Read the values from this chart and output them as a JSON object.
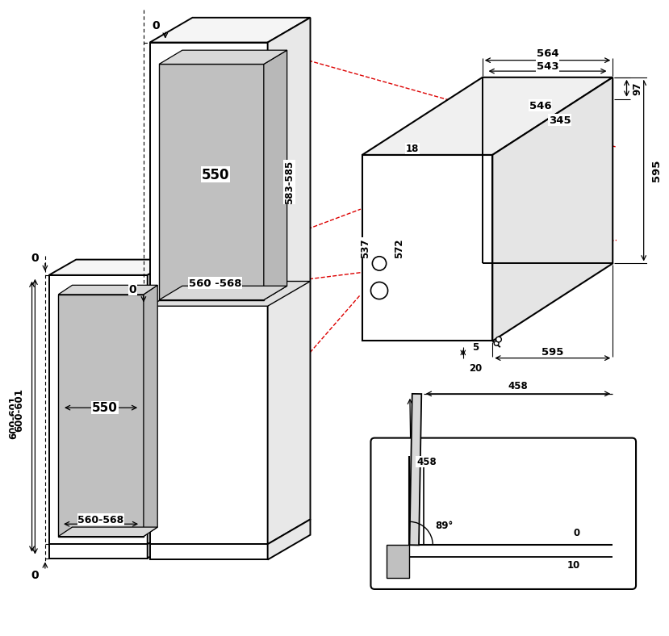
{
  "bg_color": "#ffffff",
  "lc": "#000000",
  "rc": "#dd0000",
  "gray1": "#c0c0c0",
  "gray2": "#d8d8d8",
  "gray3": "#b8b8b8",
  "dims": {
    "560_568_top": "560 -568",
    "583_585": "583-585",
    "550_top": "550",
    "600_601": "600-601",
    "560_568_bot": "560-568",
    "550_bot": "550",
    "564": "564",
    "543": "543",
    "546": "546",
    "345": "345",
    "18": "18",
    "537": "537",
    "572": "572",
    "97": "97",
    "595v": "595",
    "595h": "595",
    "5": "5",
    "20": "20",
    "458": "458",
    "89": "89°",
    "0": "0",
    "10": "10"
  }
}
